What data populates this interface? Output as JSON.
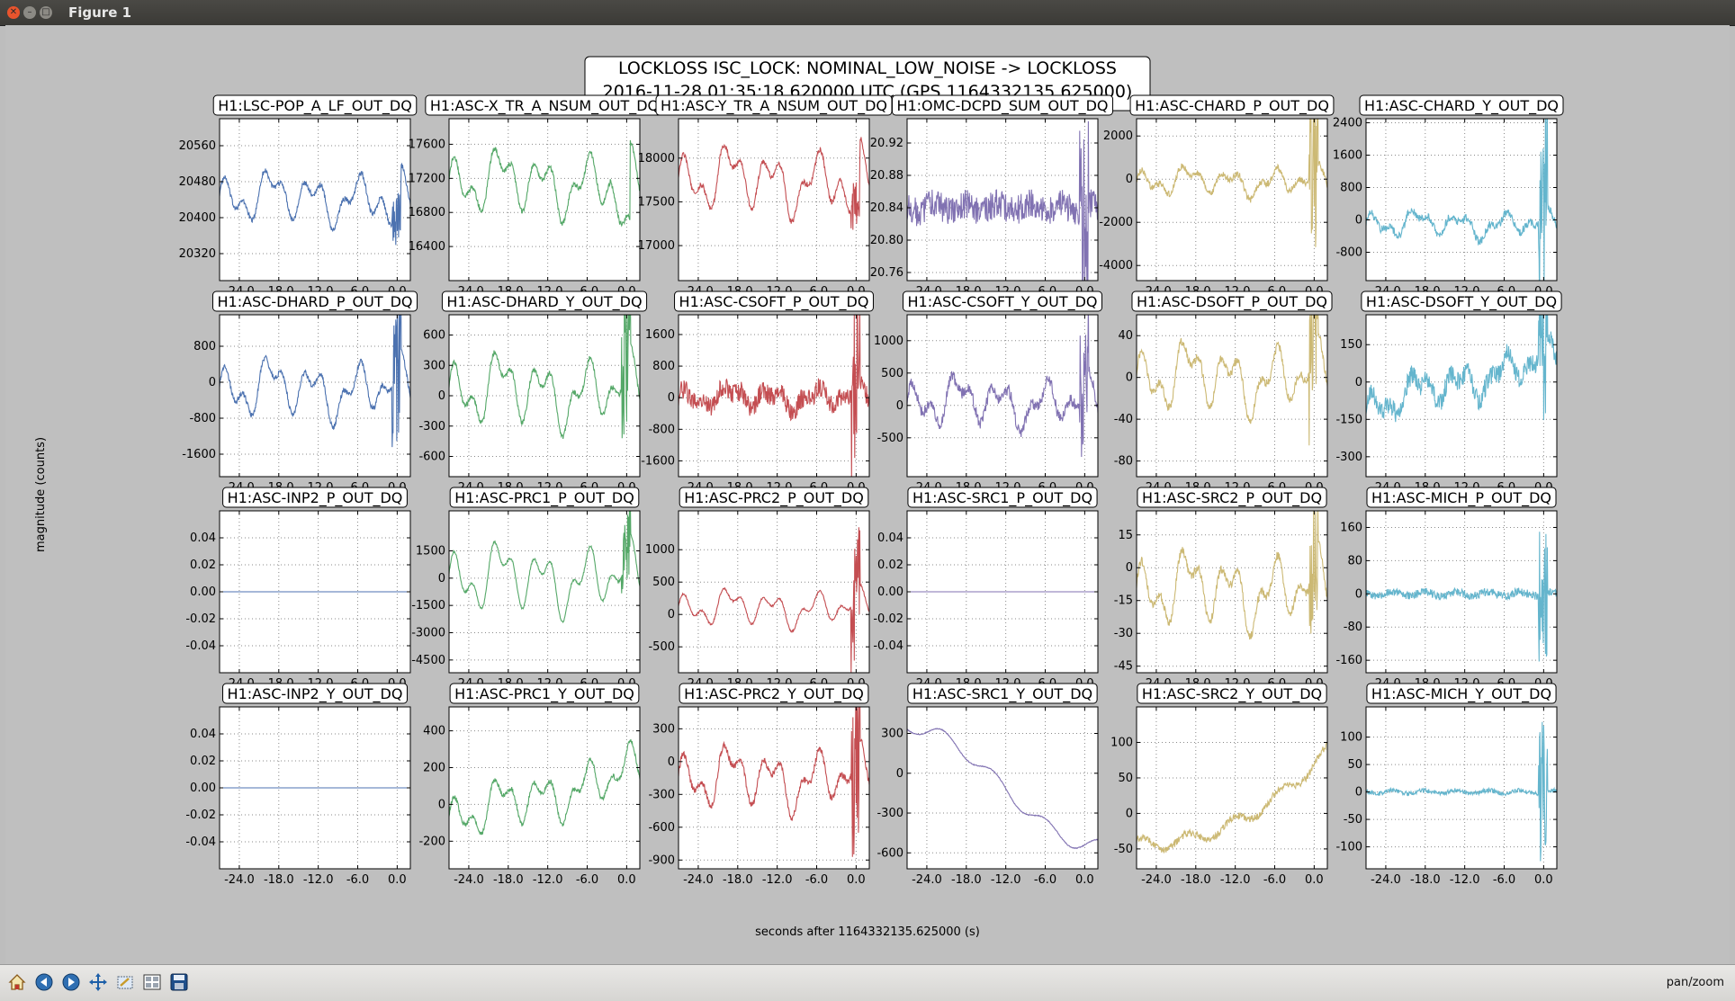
{
  "window": {
    "title": "Figure 1"
  },
  "toolbar": {
    "buttons": [
      {
        "name": "home-button",
        "icon": "home-icon"
      },
      {
        "name": "back-button",
        "icon": "arrow-left-icon"
      },
      {
        "name": "forward-button",
        "icon": "arrow-right-icon"
      },
      {
        "name": "pan-button",
        "icon": "move-icon"
      },
      {
        "name": "zoom-button",
        "icon": "zoom-rect-icon"
      },
      {
        "name": "configure-button",
        "icon": "subplots-icon"
      },
      {
        "name": "save-button",
        "icon": "floppy-icon"
      }
    ],
    "mode": "pan/zoom"
  },
  "figure": {
    "title_line1": "LOCKLOSS ISC_LOCK: NOMINAL_LOW_NOISE -> LOCKLOSS",
    "title_line2": "2016-11-28 01:35:18.620000 UTC (GPS 1164332135.625000)",
    "xlabel": "seconds after 1164332135.625000 (s)",
    "ylabel": "magnitude (counts)"
  },
  "chart_data": {
    "type": "line",
    "rows": 4,
    "cols": 6,
    "xlim": [
      -27,
      2
    ],
    "xticks": [
      -24,
      -18,
      -12,
      -6,
      0
    ],
    "xtick_labels": [
      "-24.0",
      "-18.0",
      "-12.0",
      "-6.0",
      "0.0"
    ],
    "grid": true,
    "colors": [
      "#4c72b0",
      "#55a868",
      "#c44e52",
      "#8172b2",
      "#ccb974",
      "#64b5cd"
    ],
    "panels": [
      {
        "title": "H1:LSC-POP_A_LF_OUT_DQ",
        "ylim": [
          20260,
          20620
        ],
        "yticks": [
          20320,
          20400,
          20480,
          20560
        ],
        "ytick_labels": [
          "20320",
          "20400",
          "20480",
          "20560"
        ],
        "yaxis": "left",
        "color_index": 0,
        "shape": "osc",
        "mean": 20445,
        "amp": 60,
        "noise": 6,
        "trend": 0,
        "burst": 60,
        "drop": -120
      },
      {
        "title": "H1:ASC-X_TR_A_NSUM_OUT_DQ",
        "ylim": [
          16000,
          17900
        ],
        "yticks": [
          16400,
          16800,
          17200,
          17600
        ],
        "ytick_labels": [
          "16400",
          "16800",
          "17200",
          "17600"
        ],
        "yaxis": "left",
        "color_index": 1,
        "shape": "osc",
        "mean": 17150,
        "amp": 400,
        "noise": 30,
        "trend": 0,
        "burst": 0,
        "drop": -900
      },
      {
        "title": "H1:ASC-Y_TR_A_NSUM_OUT_DQ",
        "ylim": [
          16600,
          18450
        ],
        "yticks": [
          17000,
          17500,
          18000
        ],
        "ytick_labels": [
          "17000",
          "17500",
          "18000"
        ],
        "yaxis": "left",
        "color_index": 2,
        "shape": "osc",
        "mean": 17750,
        "amp": 400,
        "noise": 30,
        "trend": 0,
        "burst": 300,
        "drop": -700
      },
      {
        "title": "H1:OMC-DCPD_SUM_OUT_DQ",
        "ylim": [
          20.75,
          20.95
        ],
        "yticks": [
          20.76,
          20.8,
          20.84,
          20.88,
          20.92
        ],
        "ytick_labels": [
          "20.76",
          "20.80",
          "20.84",
          "20.88",
          "20.92"
        ],
        "yaxis": "left",
        "color_index": 3,
        "shape": "noise",
        "mean": 20.84,
        "amp": 0.005,
        "noise": 0.018,
        "trend": 0,
        "burst": 0.12,
        "drop": 0
      },
      {
        "title": "H1:ASC-CHARD_P_OUT_DQ",
        "ylim": [
          -4700,
          2800
        ],
        "yticks": [
          -4000,
          -2000,
          0,
          2000
        ],
        "ytick_labels": [
          "-4000",
          "-2000",
          "0",
          "2000"
        ],
        "yaxis": "left",
        "color_index": 4,
        "shape": "osc",
        "mean": -100,
        "amp": 700,
        "noise": 150,
        "trend": 0,
        "burst": 4500,
        "drop": 0
      },
      {
        "title": "H1:ASC-CHARD_Y_OUT_DQ",
        "ylim": [
          -1500,
          2500
        ],
        "yticks": [
          -800,
          0,
          800,
          1600,
          2400
        ],
        "ytick_labels": [
          "-800",
          "0",
          "800",
          "1600",
          "2400"
        ],
        "yaxis": "left",
        "color_index": 5,
        "shape": "osc",
        "mean": -100,
        "amp": 350,
        "noise": 100,
        "trend": 0,
        "burst": 2500,
        "drop": 0
      },
      {
        "title": "H1:ASC-DHARD_P_OUT_DQ",
        "ylim": [
          -2100,
          1500
        ],
        "yticks": [
          -1600,
          -800,
          0,
          800
        ],
        "ytick_labels": [
          "-1600",
          "-800",
          "0",
          "800"
        ],
        "yaxis": "left",
        "color_index": 0,
        "shape": "osc",
        "mean": -150,
        "amp": 700,
        "noise": 60,
        "trend": 0,
        "burst": 1800,
        "drop": 0
      },
      {
        "title": "H1:ASC-DHARD_Y_OUT_DQ",
        "ylim": [
          -800,
          800
        ],
        "yticks": [
          -600,
          -300,
          0,
          300,
          600
        ],
        "ytick_labels": [
          "-600",
          "-300",
          "0",
          "300",
          "600"
        ],
        "yaxis": "left",
        "color_index": 1,
        "shape": "osc",
        "mean": 50,
        "amp": 380,
        "noise": 25,
        "trend": 0,
        "burst": 700,
        "drop": 0
      },
      {
        "title": "H1:ASC-CSOFT_P_OUT_DQ",
        "ylim": [
          -2000,
          2100
        ],
        "yticks": [
          -1600,
          -800,
          0,
          800,
          1600
        ],
        "ytick_labels": [
          "-1600",
          "-800",
          "0",
          "800",
          "1600"
        ],
        "yaxis": "left",
        "color_index": 2,
        "shape": "osc",
        "mean": 0,
        "amp": 300,
        "noise": 250,
        "trend": 0,
        "burst": 2000,
        "drop": 0
      },
      {
        "title": "H1:ASC-CSOFT_Y_OUT_DQ",
        "ylim": [
          -1100,
          1400
        ],
        "yticks": [
          -500,
          0,
          500,
          1000
        ],
        "ytick_labels": [
          "-500",
          "0",
          "500",
          "1000"
        ],
        "yaxis": "left",
        "color_index": 3,
        "shape": "osc",
        "mean": 50,
        "amp": 400,
        "noise": 90,
        "trend": 0,
        "burst": 1200,
        "drop": 0
      },
      {
        "title": "H1:ASC-DSOFT_P_OUT_DQ",
        "ylim": [
          -95,
          60
        ],
        "yticks": [
          -80,
          -40,
          0,
          40
        ],
        "ytick_labels": [
          "-80",
          "-40",
          "0",
          "40"
        ],
        "yaxis": "left",
        "color_index": 4,
        "shape": "osc",
        "mean": 0,
        "amp": 35,
        "noise": 4,
        "trend": 0,
        "burst": 80,
        "drop": 0
      },
      {
        "title": "H1:ASC-DSOFT_Y_OUT_DQ",
        "ylim": [
          -380,
          270
        ],
        "yticks": [
          -300,
          -150,
          0,
          150
        ],
        "ytick_labels": [
          "-300",
          "-150",
          "0",
          "150"
        ],
        "yaxis": "left",
        "color_index": 5,
        "shape": "osc",
        "mean": 0,
        "amp": 80,
        "noise": 40,
        "trend": 200,
        "burst": 300,
        "drop": 0
      },
      {
        "title": "H1:ASC-INP2_P_OUT_DQ",
        "ylim": [
          -0.06,
          0.06
        ],
        "yticks": [
          -0.04,
          -0.02,
          0.0,
          0.02,
          0.04
        ],
        "ytick_labels": [
          "-0.04",
          "-0.02",
          "0.00",
          "0.02",
          "0.04"
        ],
        "yaxis": "left",
        "color_index": 0,
        "shape": "flat",
        "mean": 0,
        "amp": 0,
        "noise": 0,
        "trend": 0,
        "burst": 0,
        "drop": 0
      },
      {
        "title": "H1:ASC-PRC1_P_OUT_DQ",
        "ylim": [
          -5200,
          3700
        ],
        "yticks": [
          -4500,
          -3000,
          -1500,
          0,
          1500
        ],
        "ytick_labels": [
          "-4500",
          "-3000",
          "-1500",
          "0",
          "1500"
        ],
        "yaxis": "left",
        "color_index": 1,
        "shape": "osc",
        "mean": 0,
        "amp": 2000,
        "noise": 60,
        "trend": 0,
        "burst": 2500,
        "drop": 0
      },
      {
        "title": "H1:ASC-PRC2_P_OUT_DQ",
        "ylim": [
          -900,
          1600
        ],
        "yticks": [
          -500,
          0,
          500,
          1000
        ],
        "ytick_labels": [
          "-500",
          "0",
          "500",
          "1000"
        ],
        "yaxis": "left",
        "color_index": 2,
        "shape": "osc",
        "mean": 100,
        "amp": 300,
        "noise": 15,
        "trend": 0,
        "burst": 1100,
        "drop": 0
      },
      {
        "title": "H1:ASC-SRC1_P_OUT_DQ",
        "ylim": [
          -0.06,
          0.06
        ],
        "yticks": [
          -0.04,
          -0.02,
          0.0,
          0.02,
          0.04
        ],
        "ytick_labels": [
          "-0.04",
          "-0.02",
          "0.00",
          "0.02",
          "0.04"
        ],
        "yaxis": "left",
        "color_index": 3,
        "shape": "flat",
        "mean": 0,
        "amp": 0,
        "noise": 0,
        "trend": 0,
        "burst": 0,
        "drop": 0
      },
      {
        "title": "H1:ASC-SRC2_P_OUT_DQ",
        "ylim": [
          -48,
          26
        ],
        "yticks": [
          -45,
          -30,
          -15,
          0,
          15
        ],
        "ytick_labels": [
          "-45",
          "-30",
          "-15",
          "0",
          "15"
        ],
        "yaxis": "left",
        "color_index": 4,
        "shape": "osc",
        "mean": -10,
        "amp": 18,
        "noise": 2,
        "trend": 0,
        "burst": 30,
        "drop": 0
      },
      {
        "title": "H1:ASC-MICH_P_OUT_DQ",
        "ylim": [
          -190,
          200
        ],
        "yticks": [
          -160,
          -80,
          0,
          80,
          160
        ],
        "ytick_labels": [
          "-160",
          "-80",
          "0",
          "80",
          "160"
        ],
        "yaxis": "left",
        "color_index": 5,
        "shape": "noise",
        "mean": 0,
        "amp": 5,
        "noise": 10,
        "trend": 0,
        "burst": 170,
        "drop": 0
      },
      {
        "title": "H1:ASC-INP2_Y_OUT_DQ",
        "ylim": [
          -0.06,
          0.06
        ],
        "yticks": [
          -0.04,
          -0.02,
          0.0,
          0.02,
          0.04
        ],
        "ytick_labels": [
          "-0.04",
          "-0.02",
          "0.00",
          "0.02",
          "0.04"
        ],
        "yaxis": "left",
        "color_index": 0,
        "shape": "flat",
        "mean": 0,
        "amp": 0,
        "noise": 0,
        "trend": 0,
        "burst": 0,
        "drop": 0
      },
      {
        "title": "H1:ASC-PRC1_Y_OUT_DQ",
        "ylim": [
          -350,
          530
        ],
        "yticks": [
          -200,
          0,
          200,
          400
        ],
        "ytick_labels": [
          "-200",
          "0",
          "200",
          "400"
        ],
        "yaxis": "left",
        "color_index": 1,
        "shape": "osc",
        "mean": 50,
        "amp": 150,
        "noise": 12,
        "trend": 250,
        "burst": 0,
        "drop": 0
      },
      {
        "title": "H1:ASC-PRC2_Y_OUT_DQ",
        "ylim": [
          -980,
          500
        ],
        "yticks": [
          -900,
          -600,
          -300,
          0,
          300
        ],
        "ytick_labels": [
          "-900",
          "-600",
          "-300",
          "0",
          "300"
        ],
        "yaxis": "left",
        "color_index": 2,
        "shape": "osc",
        "mean": -150,
        "amp": 300,
        "noise": 30,
        "trend": 0,
        "burst": 900,
        "drop": 0
      },
      {
        "title": "H1:ASC-SRC1_Y_OUT_DQ",
        "ylim": [
          -720,
          500
        ],
        "yticks": [
          -600,
          -300,
          0,
          300
        ],
        "ytick_labels": [
          "-600",
          "-300",
          "0",
          "300"
        ],
        "yaxis": "left",
        "color_index": 3,
        "shape": "decay",
        "mean": -100,
        "amp": 500,
        "noise": 3,
        "trend": 0,
        "burst": 0,
        "drop": 0
      },
      {
        "title": "H1:ASC-SRC2_Y_OUT_DQ",
        "ylim": [
          -78,
          150
        ],
        "yticks": [
          -50,
          0,
          50,
          100
        ],
        "ytick_labels": [
          "-50",
          "0",
          "50",
          "100"
        ],
        "yaxis": "left",
        "color_index": 4,
        "shape": "rise",
        "mean": 10,
        "amp": 60,
        "noise": 5,
        "trend": 0,
        "burst": 0,
        "drop": 0
      },
      {
        "title": "H1:ASC-MICH_Y_OUT_DQ",
        "ylim": [
          -140,
          155
        ],
        "yticks": [
          -100,
          -50,
          0,
          50,
          100
        ],
        "ytick_labels": [
          "-100",
          "-50",
          "0",
          "50",
          "100"
        ],
        "yaxis": "left",
        "color_index": 5,
        "shape": "noise",
        "mean": 0,
        "amp": 3,
        "noise": 4,
        "trend": 0,
        "burst": 130,
        "drop": 0
      }
    ]
  }
}
